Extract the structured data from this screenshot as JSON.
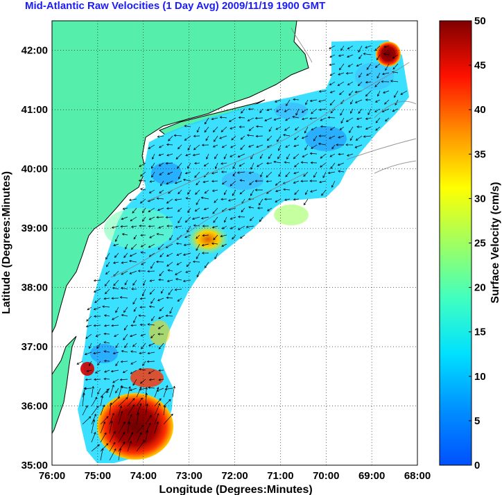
{
  "title": "Mid-Atlantic Raw Velocities (1 Day Avg) 2009/11/19 1900 GMT",
  "map": {
    "xlabel": "Longitude (Degrees:Minutes)",
    "ylabel": "Latitude (Degrees:Minutes)",
    "lon_ticks": [
      "76:00",
      "75:00",
      "74:00",
      "73:00",
      "72:00",
      "71:00",
      "70:00",
      "69:00",
      "68:00"
    ],
    "lat_ticks": [
      "35:00",
      "36:00",
      "37:00",
      "38:00",
      "39:00",
      "40:00",
      "41:00",
      "42:00"
    ],
    "lon_range": [
      -76,
      -68
    ],
    "lat_range": [
      35,
      42.5
    ],
    "land_color": "#55eeaa",
    "grid": true
  },
  "colorbar": {
    "label": "Surface Velocity (cm/s)",
    "ticks": [
      "0",
      "5",
      "10",
      "15",
      "20",
      "25",
      "30",
      "35",
      "40",
      "45",
      "50"
    ],
    "range": [
      0,
      50
    ],
    "colormap": "jet"
  }
}
